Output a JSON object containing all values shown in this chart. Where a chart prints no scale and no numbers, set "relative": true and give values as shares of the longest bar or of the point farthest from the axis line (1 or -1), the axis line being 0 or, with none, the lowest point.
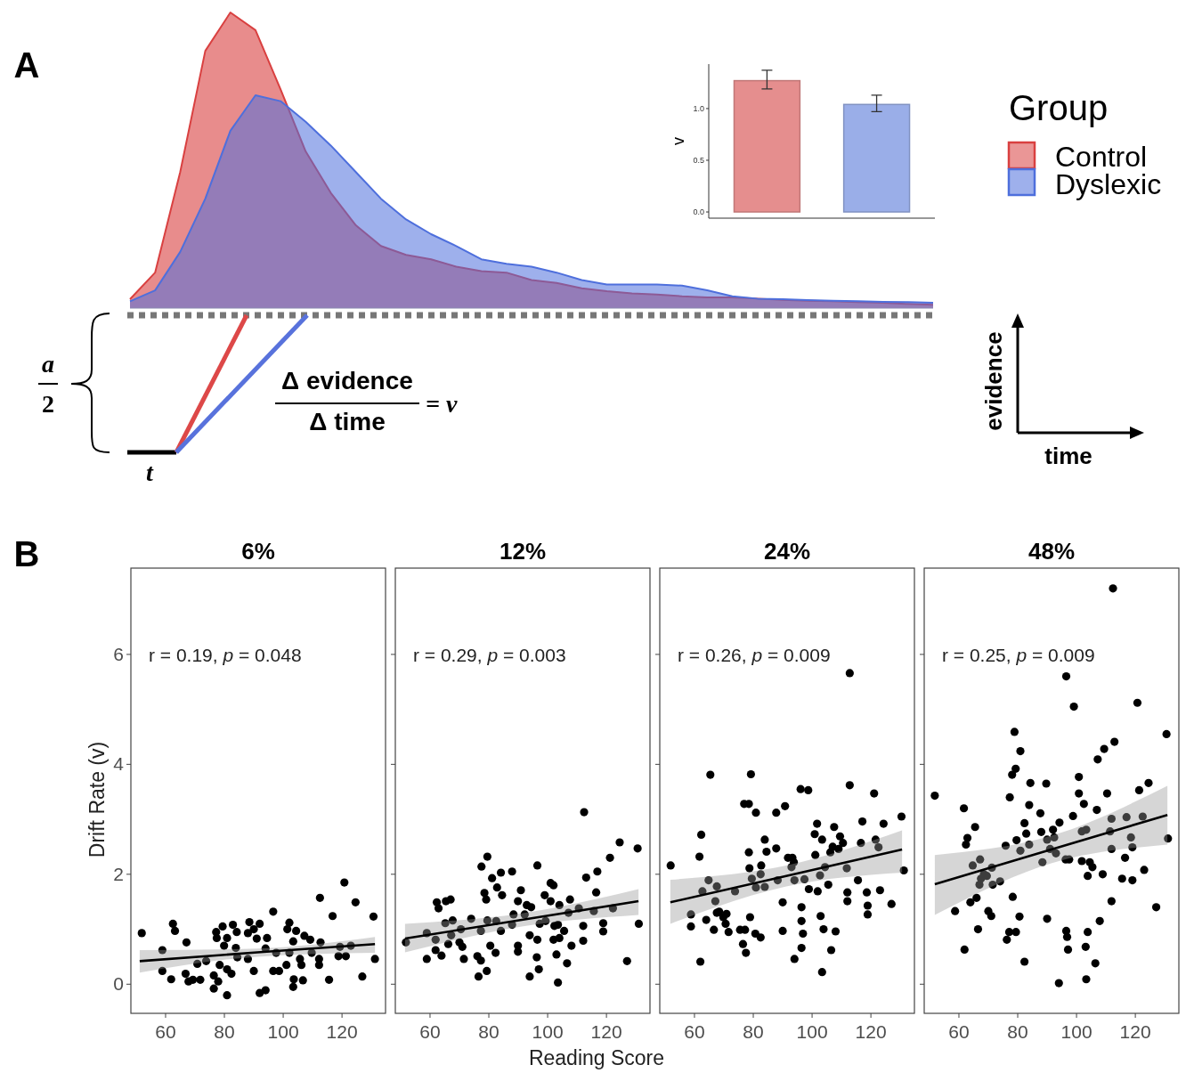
{
  "chart_data": [
    {
      "type": "area",
      "relative": true,
      "legend": "right",
      "legend_title": "Group",
      "annotations": [
        "A",
        "a",
        "2",
        "t",
        "Δ evidence",
        "Δ time",
        "= v",
        "evidence",
        "time"
      ],
      "categories": [
        null,
        null,
        null,
        null,
        null,
        null,
        null,
        null,
        null,
        null,
        null,
        null,
        null,
        null,
        null,
        null,
        null,
        null,
        null,
        null,
        null,
        null,
        null,
        null,
        null,
        null,
        null,
        null,
        null,
        null,
        null,
        null,
        null
      ],
      "series": [
        {
          "name": "Control",
          "color": "#d94040",
          "values": [
            0.03,
            0.12,
            0.46,
            0.87,
            1.0,
            0.94,
            0.74,
            0.53,
            0.39,
            0.28,
            0.21,
            0.18,
            0.165,
            0.14,
            0.125,
            0.12,
            0.095,
            0.085,
            0.067,
            0.057,
            0.05,
            0.046,
            0.04,
            0.036,
            0.036,
            0.032,
            0.028,
            0.025,
            0.023,
            0.02,
            0.018,
            0.014,
            0.011
          ]
        },
        {
          "name": "Dyslexic",
          "color": "#4e6fdc",
          "values": [
            0.023,
            0.06,
            0.19,
            0.37,
            0.6,
            0.72,
            0.7,
            0.63,
            0.55,
            0.46,
            0.37,
            0.3,
            0.25,
            0.21,
            0.165,
            0.15,
            0.14,
            0.12,
            0.095,
            0.08,
            0.08,
            0.08,
            0.076,
            0.06,
            0.04,
            0.032,
            0.03,
            0.027,
            0.025,
            0.023,
            0.021,
            0.02,
            0.018
          ]
        }
      ]
    },
    {
      "type": "bar",
      "categories": [
        null,
        null
      ],
      "values": [
        1.27,
        1.04
      ],
      "colors": [
        "#e58e8e",
        "#9aaee8"
      ],
      "errors": [
        [
          1.19,
          1.37
        ],
        [
          0.97,
          1.13
        ]
      ],
      "ylim": [
        -0.06,
        1.43
      ],
      "yticks": [
        {
          "value": 0,
          "label": "0.0"
        },
        {
          "value": 0.5,
          "label": "0.5"
        },
        {
          "value": 1,
          "label": "1.0"
        }
      ],
      "ylabel": "v"
    },
    {
      "type": "scatter",
      "title": "6%",
      "ylabel": "Drift Rate (v)",
      "marker": "circle",
      "xlim": [
        48.2,
        134.8
      ],
      "ylim": [
        -0.53,
        7.57
      ],
      "xticks": [
        60,
        80,
        100,
        120
      ],
      "yticks": [
        0,
        2,
        4,
        6
      ],
      "annotations": [
        "B",
        "r = 0.19, p = 0.048"
      ],
      "series": [
        {
          "color": "#000000",
          "x": [
            51.9,
            58.9,
            58.9,
            61.9,
            62.5,
            63.2,
            67.1,
            66.8,
            67.8,
            69.3,
            71.8,
            70.8,
            73.8,
            76.4,
            76.4,
            77.9,
            77.2,
            77.4,
            79.4,
            79.9,
            80.9,
            78.4,
            80.9,
            82.4,
            80.9,
            82.9,
            84.2,
            83.9,
            84.4,
            88.0,
            88.5,
            90.0,
            92.0,
            91.0,
            90.0,
            88.0,
            92.0,
            94.0,
            94.5,
            94.0,
            96.6,
            97.6,
            96.6,
            98.6,
            101.1,
            101.4,
            102.1,
            104.4,
            103.4,
            102.1,
            105.7,
            106.2,
            103.6,
            106.7,
            103.4,
            107.2,
            109.2,
            109.7,
            112.2,
            112.2,
            112.7,
            112.5,
            116.8,
            115.6,
            118.8,
            119.3,
            121.3,
            120.8,
            123.0,
            124.6,
            126.9,
            130.7,
            131.2
          ],
          "values": [
            0.93,
            0.62,
            0.24,
            0.09,
            1.1,
            0.97,
            0.76,
            0.19,
            0.05,
            0.08,
            0.08,
            0.37,
            0.42,
            0.16,
            -0.08,
            0.05,
            0.95,
            0.84,
            1.05,
            0.7,
            0.84,
            0.35,
            0.27,
            0.19,
            -0.2,
            1.08,
            0.95,
            0.66,
            0.49,
            0.93,
            1.13,
            1.0,
            1.1,
            0.83,
            0.24,
            0.46,
            -0.16,
            -0.11,
            0.84,
            0.65,
            1.32,
            0.57,
            0.24,
            0.24,
            0.35,
            1.0,
            1.12,
            0.97,
            0.78,
            0.57,
            0.46,
            0.35,
            0.09,
            0.07,
            -0.05,
            0.88,
            0.81,
            0.57,
            0.46,
            0.35,
            0.76,
            1.57,
            1.24,
            0.08,
            0.51,
            0.68,
            0.51,
            1.85,
            0.7,
            1.49,
            0.14,
            1.23,
            0.46
          ]
        },
        {
          "type": "line",
          "marker": "none",
          "color": "#000000",
          "x": [
            51.2,
            91.2,
            131.2
          ],
          "values": [
            0.42,
            0.58,
            0.73
          ],
          "lower": [
            0.21,
            0.5,
            0.57
          ],
          "upper": [
            0.62,
            0.65,
            0.86
          ]
        }
      ]
    },
    {
      "type": "scatter",
      "title": "12%",
      "xlabel": "Reading Score",
      "marker": "circle",
      "tick_labels": "x",
      "xlim": [
        48.2,
        134.8
      ],
      "ylim": [
        -0.53,
        7.57
      ],
      "xticks": [
        60,
        80,
        100,
        120
      ],
      "yticks": [
        0,
        2,
        4,
        6
      ],
      "annotations": [
        "r = 0.29, p = 0.003"
      ],
      "series": [
        {
          "color": "#000000",
          "x": [
            51.8,
            58.9,
            58.9,
            61.9,
            61.9,
            63.9,
            62.3,
            62.9,
            65.4,
            67.0,
            65.2,
            67.7,
            66.2,
            67.2,
            70.0,
            71.0,
            71.5,
            70.5,
            74.0,
            76.1,
            77.3,
            76.5,
            79.3,
            77.3,
            78.5,
            79.1,
            77.5,
            79.5,
            79.5,
            80.5,
            82.3,
            81.1,
            82.8,
            84.1,
            84.5,
            82.5,
            84.1,
            87.9,
            87.9,
            88.4,
            90.9,
            89.9,
            89.9,
            89.9,
            92.2,
            92.9,
            94.4,
            93.9,
            93.9,
            96.5,
            96.3,
            97.0,
            96.5,
            97.3,
            99.0,
            99.3,
            101.0,
            101.0,
            102.0,
            102.0,
            102.3,
            103.5,
            104.0,
            103.0,
            103.5,
            104.0,
            105.6,
            106.6,
            107.6,
            108.1,
            107.1,
            110.6,
            112.1,
            112.1,
            112.4,
            113.1,
            116.5,
            116.9,
            115.7,
            118.9,
            118.9,
            121.2,
            122.2,
            124.5,
            127.0,
            130.6,
            131.0
          ],
          "values": [
            0.76,
            0.93,
            0.46,
            0.62,
            0.81,
            0.52,
            1.49,
            1.38,
            1.51,
            1.54,
            1.11,
            1.16,
            0.73,
            0.89,
            0.76,
            0.68,
            0.46,
            1.0,
            1.19,
            0.51,
            0.43,
            0.14,
            0.24,
            0.97,
            1.66,
            1.54,
            2.14,
            2.32,
            1.16,
            0.7,
            0.57,
            1.93,
            1.76,
            2.03,
            1.62,
            1.15,
            0.97,
            2.05,
            1.08,
            1.27,
            1.71,
            1.51,
            0.7,
            0.59,
            1.27,
            1.44,
            1.4,
            0.89,
            0.14,
            0.81,
            0.49,
            0.27,
            2.16,
            1.1,
            1.62,
            1.15,
            1.51,
            1.84,
            1.8,
            0.81,
            1.06,
            1.08,
            0.84,
            0.54,
            0.03,
            1.44,
            0.97,
            0.38,
            1.54,
            0.7,
            1.3,
            1.38,
            1.06,
            0.79,
            3.13,
            1.94,
            1.67,
            2.05,
            1.33,
            1.11,
            0.96,
            2.3,
            1.38,
            2.58,
            0.42,
            2.47,
            1.1
          ]
        },
        {
          "type": "line",
          "marker": "none",
          "color": "#000000",
          "x": [
            51.5,
            91.2,
            130.9
          ],
          "values": [
            0.83,
            1.17,
            1.51
          ],
          "lower": [
            0.58,
            1.05,
            1.26
          ],
          "upper": [
            1.1,
            1.29,
            1.73
          ]
        }
      ]
    },
    {
      "type": "scatter",
      "title": "24%",
      "marker": "circle",
      "tick_labels": "x",
      "xlim": [
        48.2,
        134.8
      ],
      "ylim": [
        -0.53,
        7.57
      ],
      "xticks": [
        60,
        80,
        100,
        120
      ],
      "yticks": [
        0,
        2,
        4,
        6
      ],
      "annotations": [
        "r = 0.26, p = 0.009"
      ],
      "series": [
        {
          "color": "#000000",
          "x": [
            51.9,
            58.8,
            58.8,
            62.0,
            61.7,
            62.3,
            62.7,
            64.0,
            65.4,
            64.8,
            66.6,
            67.1,
            67.6,
            67.6,
            68.4,
            69.8,
            70.9,
            70.6,
            71.6,
            73.8,
            75.5,
            76.5,
            77.5,
            77.2,
            78.5,
            78.7,
            78.9,
            79.2,
            76.9,
            78.5,
            80.9,
            79.5,
            80.9,
            80.7,
            82.5,
            82.7,
            82.5,
            83.9,
            84.5,
            83.9,
            87.8,
            87.8,
            88.3,
            90.0,
            90.0,
            90.8,
            91.8,
            93.3,
            93.8,
            93.0,
            94.0,
            94.0,
            96.1,
            98.7,
            96.4,
            96.4,
            96.9,
            96.4,
            97.4,
            98.9,
            101.1,
            100.9,
            101.7,
            101.9,
            102.7,
            102.9,
            103.4,
            103.9,
            103.4,
            104.4,
            105.5,
            106.5,
            106.2,
            107.0,
            107.5,
            108.0,
            109.0,
            109.5,
            110.5,
            111.8,
            112.0,
            112.0,
            112.8,
            112.8,
            115.6,
            116.6,
            117.1,
            118.6,
            118.9,
            118.9,
            121.1,
            121.6,
            122.6,
            123.1,
            124.3,
            127.0,
            130.4,
            131.2
          ],
          "values": [
            2.16,
            1.27,
            1.05,
            0.41,
            2.32,
            2.72,
            1.69,
            1.17,
            3.81,
            1.89,
            0.99,
            1.51,
            1.78,
            1.3,
            1.32,
            1.22,
            1.28,
            1.1,
            0.95,
            1.69,
            0.99,
            0.73,
            0.57,
            0.99,
            2.4,
            2.11,
            1.22,
            3.82,
            3.28,
            3.28,
            3.12,
            1.92,
            1.76,
            0.92,
            0.85,
            2.16,
            2.0,
            2.63,
            2.41,
            1.77,
            3.12,
            2.47,
            1.89,
            1.49,
            0.97,
            3.24,
            2.3,
            2.3,
            2.22,
            2.13,
            1.89,
            0.46,
            3.55,
            3.53,
            1.4,
            1.15,
            0.92,
            0.66,
            1.91,
            1.73,
            2.35,
            2.73,
            2.92,
            1.69,
            1.98,
            1.24,
            0.22,
            1.0,
            2.63,
            2.13,
            1.81,
            0.62,
            2.4,
            2.5,
            2.86,
            0.96,
            2.46,
            2.69,
            2.57,
            2.11,
            1.67,
            1.51,
            5.66,
            3.62,
            1.89,
            2.57,
            2.96,
            1.67,
            1.43,
            1.27,
            3.47,
            2.63,
            2.49,
            1.71,
            2.92,
            1.46,
            3.05,
            2.07
          ]
        },
        {
          "type": "line",
          "marker": "none",
          "color": "#000000",
          "x": [
            51.8,
            91.2,
            130.6
          ],
          "values": [
            1.49,
            1.97,
            2.45
          ],
          "lower": [
            1.1,
            1.78,
            2.03
          ],
          "upper": [
            1.9,
            2.16,
            2.8
          ]
        }
      ]
    },
    {
      "type": "scatter",
      "title": "48%",
      "marker": "circle",
      "tick_labels": "x",
      "xlim": [
        48.2,
        134.8
      ],
      "ylim": [
        -0.53,
        7.57
      ],
      "xticks": [
        60,
        80,
        100,
        120
      ],
      "yticks": [
        0,
        2,
        4,
        6
      ],
      "annotations": [
        "r = 0.25, p = 0.009"
      ],
      "series": [
        {
          "color": "#000000",
          "x": [
            51.8,
            58.7,
            61.7,
            61.9,
            62.4,
            62.9,
            63.9,
            65.5,
            64.7,
            66.0,
            66.5,
            67.2,
            67.0,
            67.5,
            68.5,
            69.5,
            70.0,
            71.0,
            71.2,
            71.5,
            74.0,
            75.9,
            76.3,
            77.1,
            77.3,
            78.1,
            78.9,
            78.3,
            79.3,
            79.6,
            79.4,
            80.6,
            80.9,
            80.9,
            82.3,
            82.9,
            82.3,
            83.9,
            83.9,
            84.3,
            87.7,
            88.0,
            88.4,
            89.7,
            90.0,
            90.0,
            91.0,
            92.0,
            92.4,
            93.0,
            94.2,
            94.0,
            96.5,
            96.3,
            96.5,
            96.8,
            97.1,
            97.5,
            98.8,
            99.1,
            100.8,
            100.8,
            101.8,
            101.8,
            102.5,
            103.1,
            103.3,
            103.3,
            103.8,
            103.8,
            104.5,
            105.4,
            106.4,
            106.9,
            107.2,
            107.9,
            108.9,
            109.4,
            110.4,
            111.4,
            111.9,
            111.9,
            111.9,
            112.4,
            112.9,
            115.5,
            116.5,
            117.0,
            118.5,
            119.0,
            119.0,
            120.7,
            121.3,
            122.5,
            123.0,
            124.5,
            127.1,
            130.6,
            131.1
          ],
          "values": [
            3.43,
            1.33,
            3.2,
            0.63,
            2.54,
            2.66,
            1.49,
            2.86,
            2.16,
            1.57,
            1.0,
            2.27,
            1.81,
            1.92,
            2.0,
            1.97,
            1.33,
            1.24,
            2.12,
            1.81,
            1.87,
            2.52,
            0.81,
            0.95,
            3.4,
            3.81,
            4.59,
            1.59,
            3.92,
            2.62,
            0.95,
            1.23,
            4.24,
            2.43,
            2.93,
            2.74,
            0.41,
            2.54,
            3.26,
            3.66,
            3.11,
            2.77,
            2.22,
            3.65,
            2.63,
            1.19,
            2.46,
            2.81,
            2.67,
            2.38,
            2.94,
            0.02,
            5.6,
            2.27,
            0.97,
            0.86,
            0.63,
            2.27,
            3.06,
            5.05,
            3.77,
            3.47,
            2.78,
            2.24,
            3.28,
            0.68,
            2.81,
            0.09,
            1.97,
            0.95,
            2.22,
            2.13,
            0.38,
            3.17,
            4.09,
            1.15,
            2.0,
            4.28,
            3.47,
            2.78,
            1.51,
            2.46,
            3.01,
            7.2,
            4.41,
            1.92,
            2.3,
            3.04,
            2.67,
            1.89,
            2.49,
            5.12,
            3.53,
            3.05,
            2.08,
            3.66,
            1.4,
            4.55,
            2.65
          ]
        },
        {
          "type": "line",
          "marker": "none",
          "color": "#000000",
          "x": [
            51.8,
            91.4,
            130.9
          ],
          "values": [
            1.82,
            2.45,
            3.08
          ],
          "lower": [
            1.26,
            2.2,
            2.54
          ],
          "upper": [
            2.35,
            2.7,
            3.61
          ]
        }
      ]
    }
  ]
}
